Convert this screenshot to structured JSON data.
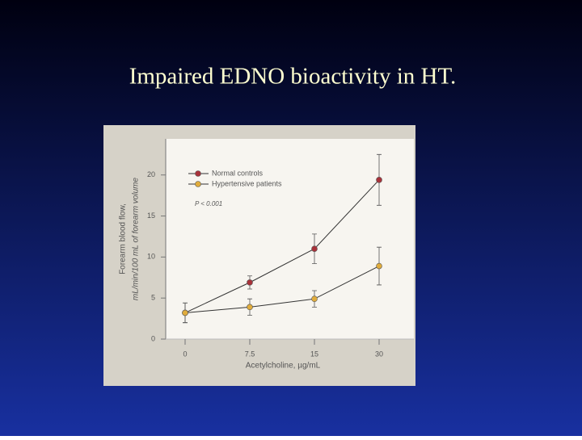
{
  "chart_data": {
    "type": "line",
    "title": "Impaired EDNO bioactivity in HT.",
    "categories": [
      "0",
      "7.5",
      "15",
      "30"
    ],
    "series": [
      {
        "name": "Normal controls",
        "color": "#a8323a",
        "values": [
          3.2,
          6.9,
          11.0,
          19.4
        ],
        "errors": [
          1.2,
          0.8,
          1.8,
          3.1
        ]
      },
      {
        "name": "Hypertensive patients",
        "color": "#e0ac3c",
        "values": [
          3.2,
          3.9,
          4.9,
          8.9
        ],
        "errors": [
          1.2,
          1.0,
          1.0,
          2.3
        ]
      }
    ],
    "xlabel": "Acetylcholine, µg/mL",
    "ylabel": [
      "Forearm blood flow,",
      "mL/min/100 mL of forearm volume"
    ],
    "annotation": "P < 0.001",
    "ylim": [
      0,
      24.4
    ],
    "yticks": [
      0,
      5,
      10,
      15,
      20
    ],
    "legend": "upper left"
  }
}
